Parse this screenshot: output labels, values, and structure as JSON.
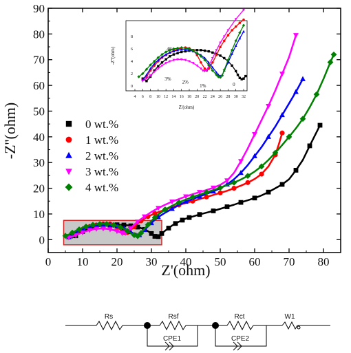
{
  "chart_data": {
    "type": "scatter",
    "xlabel": "Z'(ohm)",
    "ylabel": "-Z''(ohm)",
    "xlim": [
      0,
      85
    ],
    "ylim": [
      -5,
      90
    ],
    "xticks": [
      "0",
      "10",
      "20",
      "30",
      "40",
      "50",
      "60",
      "70",
      "80"
    ],
    "yticks": [
      "0",
      "10",
      "20",
      "30",
      "40",
      "50",
      "60",
      "70",
      "80",
      "90"
    ],
    "legend_position": "middle-left",
    "colors": {
      "s0": "#000000",
      "s1": "#ff0000",
      "s2": "#0000ff",
      "s3": "#ff00ff",
      "s4": "#008000",
      "highlight_box": "#d62728",
      "highlight_fill": "#c8c8c8"
    },
    "series": [
      {
        "name": "0 wt.%",
        "color": "#000000",
        "marker": "square",
        "points": [
          [
            6,
            1.2
          ],
          [
            7,
            0.8
          ],
          [
            8,
            1.5
          ],
          [
            9,
            2.5
          ],
          [
            10,
            3.2
          ],
          [
            11,
            3.8
          ],
          [
            12,
            4.3
          ],
          [
            13,
            4.8
          ],
          [
            14,
            5.1
          ],
          [
            15,
            5.3
          ],
          [
            16,
            5.5
          ],
          [
            17,
            5.6
          ],
          [
            18,
            5.7
          ],
          [
            19,
            5.8
          ],
          [
            20,
            5.8
          ],
          [
            21,
            5.8
          ],
          [
            22,
            5.7
          ],
          [
            23,
            5.6
          ],
          [
            24,
            5.4
          ],
          [
            25,
            5.2
          ],
          [
            26,
            4.9
          ],
          [
            27,
            4.5
          ],
          [
            28,
            4.0
          ],
          [
            29,
            3.3
          ],
          [
            30,
            2.4
          ],
          [
            30.5,
            1.8
          ],
          [
            31,
            1.3
          ],
          [
            31.5,
            1.1
          ],
          [
            32,
            1.2
          ],
          [
            32.5,
            1.6
          ],
          [
            33,
            2.4
          ],
          [
            34,
            3.5
          ],
          [
            35,
            4.5
          ],
          [
            36,
            5.5
          ],
          [
            37,
            6.3
          ],
          [
            38,
            7.0
          ],
          [
            39,
            7.6
          ],
          [
            40,
            8.2
          ],
          [
            41,
            8.6
          ],
          [
            42,
            9.0
          ],
          [
            44,
            9.8
          ],
          [
            46,
            10.5
          ],
          [
            48,
            11.2
          ],
          [
            50,
            12.0
          ],
          [
            52,
            12.8
          ],
          [
            54,
            13.6
          ],
          [
            56,
            14.5
          ],
          [
            58,
            15.3
          ],
          [
            60,
            16.2
          ],
          [
            62,
            17.2
          ],
          [
            64,
            18.5
          ],
          [
            66,
            20.0
          ],
          [
            68,
            21.5
          ],
          [
            70,
            23.5
          ],
          [
            72,
            27.0
          ],
          [
            74,
            31.0
          ],
          [
            76,
            36.5
          ],
          [
            79,
            44.5
          ]
        ]
      },
      {
        "name": "1 wt.%",
        "color": "#ff0000",
        "marker": "circle",
        "points": [
          [
            6,
            1.0
          ],
          [
            7,
            1.5
          ],
          [
            8,
            2.5
          ],
          [
            9,
            3.3
          ],
          [
            10,
            4.0
          ],
          [
            11,
            4.6
          ],
          [
            12,
            5.0
          ],
          [
            13,
            5.4
          ],
          [
            14,
            5.7
          ],
          [
            15,
            6.0
          ],
          [
            16,
            6.1
          ],
          [
            17,
            6.2
          ],
          [
            18,
            6.1
          ],
          [
            19,
            5.8
          ],
          [
            20,
            5.0
          ],
          [
            21,
            3.8
          ],
          [
            22,
            2.8
          ],
          [
            22.5,
            2.5
          ],
          [
            23,
            2.8
          ],
          [
            24,
            3.8
          ],
          [
            25,
            5.0
          ],
          [
            26,
            6.3
          ],
          [
            27,
            7.3
          ],
          [
            28,
            8.2
          ],
          [
            29,
            9.0
          ],
          [
            30,
            9.6
          ],
          [
            31,
            10.2
          ],
          [
            32,
            10.7
          ],
          [
            34,
            11.7
          ],
          [
            36,
            12.6
          ],
          [
            38,
            13.5
          ],
          [
            40,
            14.3
          ],
          [
            42,
            15.0
          ],
          [
            44,
            15.8
          ],
          [
            46,
            16.6
          ],
          [
            48,
            17.4
          ],
          [
            50,
            18.2
          ],
          [
            52,
            19.0
          ],
          [
            54,
            20.0
          ],
          [
            56,
            21.0
          ],
          [
            58,
            22.2
          ],
          [
            60,
            23.6
          ],
          [
            62,
            25.5
          ],
          [
            64,
            28.5
          ],
          [
            66,
            33.0
          ],
          [
            67,
            37.0
          ],
          [
            68,
            41.5
          ]
        ]
      },
      {
        "name": "2 wt.%",
        "color": "#0000ff",
        "marker": "triangle-up",
        "points": [
          [
            6,
            1.0
          ],
          [
            7,
            1.8
          ],
          [
            8,
            2.8
          ],
          [
            9,
            3.6
          ],
          [
            10,
            4.2
          ],
          [
            11,
            4.7
          ],
          [
            12,
            5.1
          ],
          [
            13,
            5.4
          ],
          [
            14,
            5.6
          ],
          [
            15,
            5.8
          ],
          [
            16,
            5.9
          ],
          [
            17,
            5.9
          ],
          [
            18,
            5.8
          ],
          [
            19,
            5.6
          ],
          [
            20,
            5.3
          ],
          [
            21,
            5.0
          ],
          [
            22,
            4.5
          ],
          [
            23,
            3.8
          ],
          [
            24,
            3.0
          ],
          [
            25,
            2.2
          ],
          [
            25.5,
            1.8
          ],
          [
            26,
            1.6
          ],
          [
            26.5,
            1.8
          ],
          [
            27,
            2.5
          ],
          [
            28,
            3.8
          ],
          [
            29,
            5.2
          ],
          [
            30,
            6.5
          ],
          [
            31,
            7.7
          ],
          [
            32,
            8.8
          ],
          [
            34,
            10.5
          ],
          [
            36,
            12.0
          ],
          [
            38,
            13.5
          ],
          [
            40,
            14.8
          ],
          [
            42,
            15.8
          ],
          [
            44,
            16.8
          ],
          [
            46,
            17.8
          ],
          [
            48,
            18.8
          ],
          [
            50,
            20.0
          ],
          [
            52,
            21.5
          ],
          [
            54,
            23.5
          ],
          [
            56,
            26.0
          ],
          [
            58,
            29.0
          ],
          [
            60,
            32.5
          ],
          [
            62,
            36.0
          ],
          [
            64,
            40.0
          ],
          [
            66,
            44.0
          ],
          [
            68,
            48.5
          ],
          [
            70,
            53.0
          ],
          [
            72,
            57.5
          ],
          [
            74,
            62.5
          ]
        ]
      },
      {
        "name": "3 wt.%",
        "color": "#ff00ff",
        "marker": "triangle-down",
        "points": [
          [
            6,
            0.8
          ],
          [
            7,
            1.2
          ],
          [
            8,
            1.7
          ],
          [
            9,
            2.3
          ],
          [
            10,
            2.8
          ],
          [
            11,
            3.3
          ],
          [
            12,
            3.7
          ],
          [
            13,
            4.0
          ],
          [
            14,
            4.2
          ],
          [
            15,
            4.3
          ],
          [
            16,
            4.3
          ],
          [
            17,
            4.2
          ],
          [
            18,
            4.0
          ],
          [
            19,
            3.7
          ],
          [
            20,
            3.3
          ],
          [
            21,
            2.8
          ],
          [
            21.5,
            2.5
          ],
          [
            22,
            2.4
          ],
          [
            22.5,
            2.6
          ],
          [
            23,
            3.2
          ],
          [
            24,
            4.5
          ],
          [
            25,
            5.8
          ],
          [
            26,
            7.0
          ],
          [
            27,
            8.0
          ],
          [
            28,
            9.0
          ],
          [
            30,
            10.8
          ],
          [
            32,
            12.3
          ],
          [
            34,
            13.6
          ],
          [
            36,
            14.8
          ],
          [
            38,
            15.8
          ],
          [
            40,
            16.8
          ],
          [
            42,
            17.7
          ],
          [
            44,
            18.5
          ],
          [
            46,
            19.3
          ],
          [
            48,
            20.2
          ],
          [
            50,
            21.3
          ],
          [
            52,
            23.0
          ],
          [
            54,
            26.0
          ],
          [
            56,
            30.5
          ],
          [
            58,
            35.5
          ],
          [
            60,
            41.0
          ],
          [
            62,
            46.5
          ],
          [
            64,
            52.0
          ],
          [
            66,
            58.0
          ],
          [
            68,
            64.5
          ],
          [
            70,
            71.0
          ],
          [
            72,
            79.5
          ]
        ]
      },
      {
        "name": "4 wt.%",
        "color": "#008000",
        "marker": "diamond",
        "points": [
          [
            5,
            1.5
          ],
          [
            6,
            2.0
          ],
          [
            7,
            2.7
          ],
          [
            8,
            3.4
          ],
          [
            9,
            4.0
          ],
          [
            10,
            4.6
          ],
          [
            11,
            5.1
          ],
          [
            12,
            5.5
          ],
          [
            13,
            5.8
          ],
          [
            14,
            6.0
          ],
          [
            15,
            6.1
          ],
          [
            16,
            6.2
          ],
          [
            17,
            6.1
          ],
          [
            18,
            6.0
          ],
          [
            19,
            5.7
          ],
          [
            20,
            5.3
          ],
          [
            21,
            4.8
          ],
          [
            22,
            4.2
          ],
          [
            23,
            3.4
          ],
          [
            24,
            2.5
          ],
          [
            25,
            1.8
          ],
          [
            25.5,
            1.5
          ],
          [
            26,
            1.4
          ],
          [
            26.5,
            1.7
          ],
          [
            27,
            2.6
          ],
          [
            28,
            4.2
          ],
          [
            29,
            5.8
          ],
          [
            30,
            7.3
          ],
          [
            31,
            8.6
          ],
          [
            32,
            9.8
          ],
          [
            34,
            11.7
          ],
          [
            36,
            13.2
          ],
          [
            38,
            14.5
          ],
          [
            40,
            15.6
          ],
          [
            42,
            16.6
          ],
          [
            44,
            17.5
          ],
          [
            46,
            18.4
          ],
          [
            48,
            19.3
          ],
          [
            50,
            20.2
          ],
          [
            52,
            21.2
          ],
          [
            54,
            22.2
          ],
          [
            56,
            23.4
          ],
          [
            58,
            24.8
          ],
          [
            60,
            26.5
          ],
          [
            62,
            28.5
          ],
          [
            64,
            31.0
          ],
          [
            66,
            33.8
          ],
          [
            68,
            36.8
          ],
          [
            70,
            40.0
          ],
          [
            72,
            43.3
          ],
          [
            74,
            47.0
          ],
          [
            76,
            51.5
          ],
          [
            78,
            56.5
          ],
          [
            80,
            62.5
          ],
          [
            82,
            69.0
          ],
          [
            83,
            72.0
          ]
        ]
      }
    ],
    "inset": {
      "xlabel": "Z'(ohm)",
      "ylabel": "-Z''(ohm)",
      "xlim": [
        4,
        32
      ],
      "ylim": [
        -1,
        9
      ],
      "xticks": [
        "4",
        "6",
        "8",
        "10",
        "12",
        "14",
        "16",
        "18",
        "20",
        "22",
        "24",
        "26",
        "28",
        "30",
        "32"
      ],
      "yticks": [
        "0",
        "2",
        "4",
        "6",
        "8"
      ],
      "labels": [
        {
          "text": "4%",
          "x": 13,
          "y": 5.7
        },
        {
          "text": "3%",
          "x": 12.5,
          "y": 0.9
        },
        {
          "text": "2%",
          "x": 17,
          "y": 0.4
        },
        {
          "text": "1%",
          "x": 21.5,
          "y": -0.2
        },
        {
          "text": "0",
          "x": 29.5,
          "y": 0
        }
      ]
    },
    "highlight_box": {
      "x": [
        4.5,
        33
      ],
      "y": [
        -2,
        7.5
      ]
    }
  },
  "circuit": {
    "components": [
      "Rs",
      "Rsf",
      "Rct",
      "W1",
      "CPE1",
      "CPE2"
    ]
  }
}
